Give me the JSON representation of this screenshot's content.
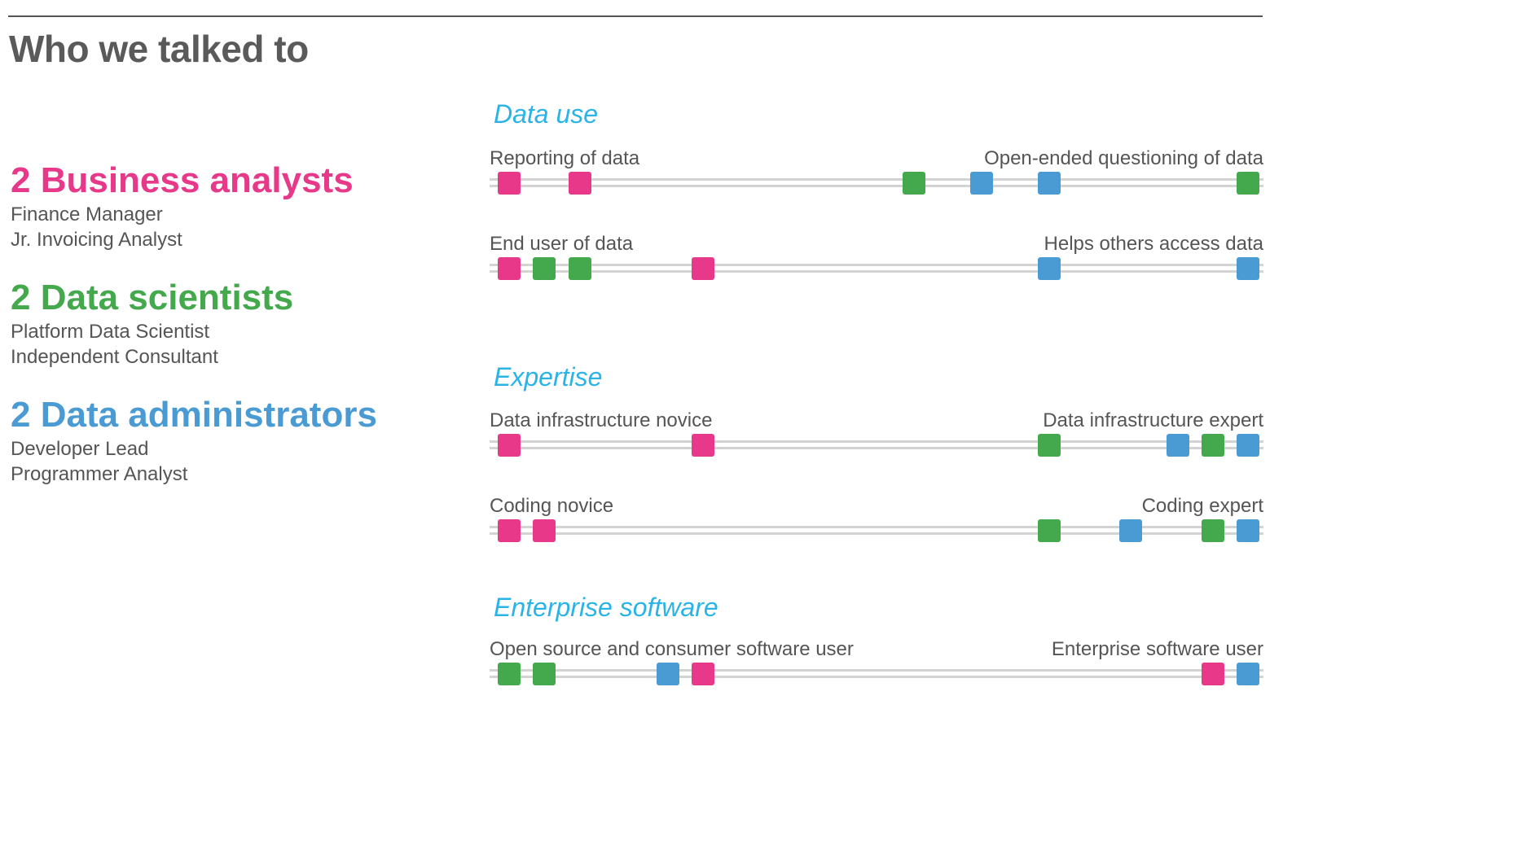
{
  "title": "Who we talked to",
  "roles": {
    "business": {
      "label": "2 Business analysts",
      "color": "#e8388a",
      "members": [
        "Finance Manager",
        "Jr. Invoicing Analyst"
      ]
    },
    "science": {
      "label": "2 Data scientists",
      "color": "#44a94d",
      "members": [
        "Platform Data Scientist",
        "Independent Consultant"
      ]
    },
    "admin": {
      "label": "2 Data administrators",
      "color": "#4a9bd4",
      "members": [
        "Developer Lead",
        "Programmer Analyst"
      ]
    }
  },
  "sections": [
    {
      "title": "Data use",
      "scales": [
        {
          "left": "Reporting of data",
          "right": "Open-ended questioning of data",
          "markers": [
            {
              "role": "business",
              "position": 0.025
            },
            {
              "role": "business",
              "position": 0.117
            },
            {
              "role": "science",
              "position": 0.548
            },
            {
              "role": "admin",
              "position": 0.636
            },
            {
              "role": "admin",
              "position": 0.723
            },
            {
              "role": "science",
              "position": 0.98
            }
          ]
        },
        {
          "left": "End user of data",
          "right": "Helps others access data",
          "markers": [
            {
              "role": "business",
              "position": 0.025
            },
            {
              "role": "science",
              "position": 0.071
            },
            {
              "role": "science",
              "position": 0.117
            },
            {
              "role": "business",
              "position": 0.276
            },
            {
              "role": "admin",
              "position": 0.723
            },
            {
              "role": "admin",
              "position": 0.98
            }
          ]
        }
      ]
    },
    {
      "title": "Expertise",
      "scales": [
        {
          "left": "Data infrastructure novice",
          "right": "Data infrastructure expert",
          "markers": [
            {
              "role": "business",
              "position": 0.025
            },
            {
              "role": "business",
              "position": 0.276
            },
            {
              "role": "science",
              "position": 0.723
            },
            {
              "role": "admin",
              "position": 0.889
            },
            {
              "role": "science",
              "position": 0.935
            },
            {
              "role": "admin",
              "position": 0.98
            }
          ]
        },
        {
          "left": "Coding novice",
          "right": "Coding expert",
          "markers": [
            {
              "role": "business",
              "position": 0.025
            },
            {
              "role": "business",
              "position": 0.071
            },
            {
              "role": "science",
              "position": 0.723
            },
            {
              "role": "admin",
              "position": 0.828
            },
            {
              "role": "science",
              "position": 0.935
            },
            {
              "role": "admin",
              "position": 0.98
            }
          ]
        }
      ]
    },
    {
      "title": "Enterprise software",
      "scales": [
        {
          "left": "Open source and consumer software user",
          "right": "Enterprise software user",
          "markers": [
            {
              "role": "science",
              "position": 0.025
            },
            {
              "role": "science",
              "position": 0.071
            },
            {
              "role": "admin",
              "position": 0.23
            },
            {
              "role": "business",
              "position": 0.276
            },
            {
              "role": "business",
              "position": 0.935
            },
            {
              "role": "admin",
              "position": 0.98
            }
          ]
        }
      ]
    }
  ]
}
